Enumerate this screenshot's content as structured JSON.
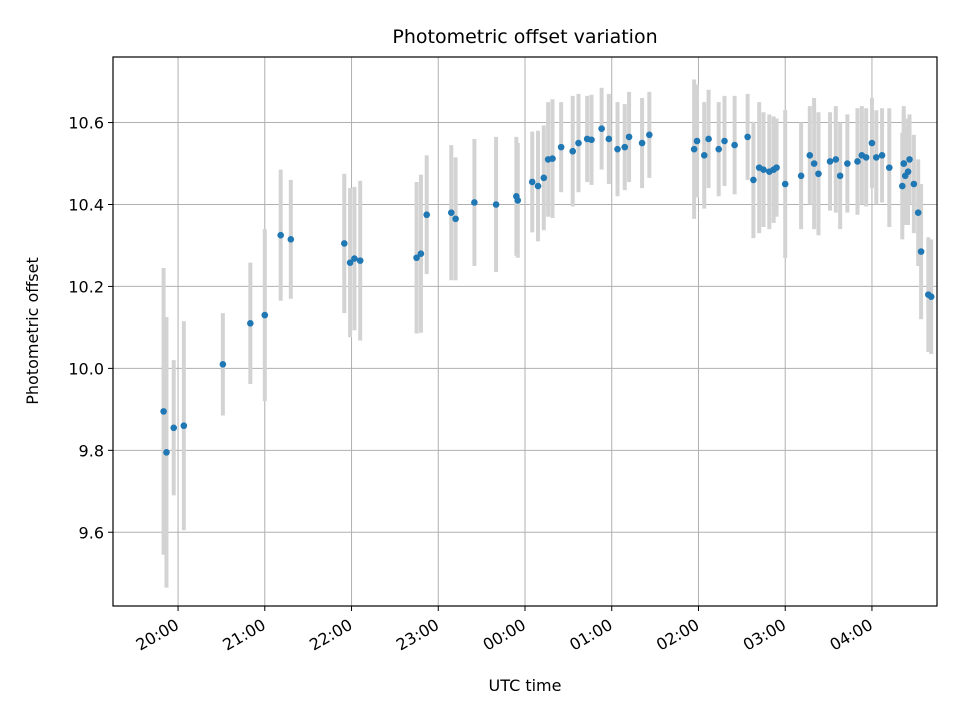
{
  "chart_data": {
    "type": "scatter",
    "title": "Photometric offset variation",
    "xlabel": "UTC time",
    "ylabel": "Photometric offset",
    "x_unit": "minutes after 00:00 UTC (negative = previous evening)",
    "xlim": [
      -285,
      285
    ],
    "ylim": [
      9.42,
      10.76
    ],
    "x_ticks": [
      {
        "value": -240,
        "label": "20:00"
      },
      {
        "value": -180,
        "label": "21:00"
      },
      {
        "value": -120,
        "label": "22:00"
      },
      {
        "value": -60,
        "label": "23:00"
      },
      {
        "value": 0,
        "label": "00:00"
      },
      {
        "value": 60,
        "label": "01:00"
      },
      {
        "value": 120,
        "label": "02:00"
      },
      {
        "value": 180,
        "label": "03:00"
      },
      {
        "value": 240,
        "label": "04:00"
      }
    ],
    "y_ticks": [
      {
        "value": 9.6,
        "label": "9.6"
      },
      {
        "value": 9.8,
        "label": "9.8"
      },
      {
        "value": 10.0,
        "label": "10.0"
      },
      {
        "value": 10.2,
        "label": "10.2"
      },
      {
        "value": 10.4,
        "label": "10.4"
      },
      {
        "value": 10.6,
        "label": "10.6"
      }
    ],
    "grid": true,
    "colors": {
      "point": "#1f77b4",
      "errorbar": "#d3d3d3",
      "grid": "#b0b0b0"
    },
    "series": [
      {
        "x": [
          -250,
          -248,
          -243,
          -236,
          -209,
          -190,
          -180,
          -169,
          -162,
          -125,
          -121,
          -118,
          -114,
          -75,
          -72,
          -68,
          -51,
          -48,
          -35,
          -20,
          -6,
          -5,
          5,
          9,
          13,
          16,
          19,
          25,
          33,
          37,
          43,
          46,
          53,
          58,
          64,
          69,
          72,
          81,
          86,
          119,
          117,
          124,
          127,
          134,
          138,
          145,
          154,
          158,
          162,
          165,
          169,
          172,
          174,
          180,
          191,
          197,
          200,
          203,
          211,
          215,
          218,
          223,
          230,
          233,
          236,
          240,
          243,
          247,
          252,
          262,
          261,
          265,
          262,
          263,
          266,
          269,
          272,
          274,
          279,
          281
        ],
        "y": [
          9.895,
          9.795,
          9.855,
          9.86,
          10.01,
          10.11,
          10.13,
          10.325,
          10.315,
          10.305,
          10.258,
          10.268,
          10.263,
          10.27,
          10.28,
          10.375,
          10.38,
          10.365,
          10.405,
          10.4,
          10.42,
          10.41,
          10.455,
          10.445,
          10.465,
          10.51,
          10.512,
          10.54,
          10.53,
          10.55,
          10.56,
          10.558,
          10.585,
          10.56,
          10.535,
          10.54,
          10.565,
          10.55,
          10.57,
          10.555,
          10.535,
          10.52,
          10.56,
          10.535,
          10.555,
          10.545,
          10.565,
          10.46,
          10.49,
          10.485,
          10.48,
          10.485,
          10.49,
          10.45,
          10.47,
          10.52,
          10.5,
          10.475,
          10.505,
          10.51,
          10.47,
          10.5,
          10.505,
          10.52,
          10.515,
          10.55,
          10.515,
          10.52,
          10.49,
          10.5,
          10.445,
          10.48,
          10.5,
          10.47,
          10.51,
          10.45,
          10.38,
          10.285,
          10.18,
          10.175
        ],
        "yerr": [
          0.35,
          0.33,
          0.165,
          0.255,
          0.125,
          0.148,
          0.21,
          0.16,
          0.145,
          0.17,
          0.182,
          0.175,
          0.195,
          0.185,
          0.193,
          0.145,
          0.165,
          0.15,
          0.155,
          0.165,
          0.145,
          0.14,
          0.123,
          0.135,
          0.128,
          0.14,
          0.145,
          0.11,
          0.135,
          0.12,
          0.105,
          0.11,
          0.1,
          0.11,
          0.115,
          0.105,
          0.11,
          0.11,
          0.105,
          0.138,
          0.17,
          0.13,
          0.12,
          0.115,
          0.11,
          0.12,
          0.105,
          0.142,
          0.16,
          0.14,
          0.14,
          0.13,
          0.12,
          0.18,
          0.13,
          0.12,
          0.16,
          0.15,
          0.12,
          0.13,
          0.13,
          0.12,
          0.13,
          0.12,
          0.12,
          0.11,
          0.115,
          0.115,
          0.145,
          0.14,
          0.13,
          0.13,
          0.12,
          0.12,
          0.11,
          0.12,
          0.13,
          0.165,
          0.14,
          0.14
        ]
      }
    ]
  }
}
